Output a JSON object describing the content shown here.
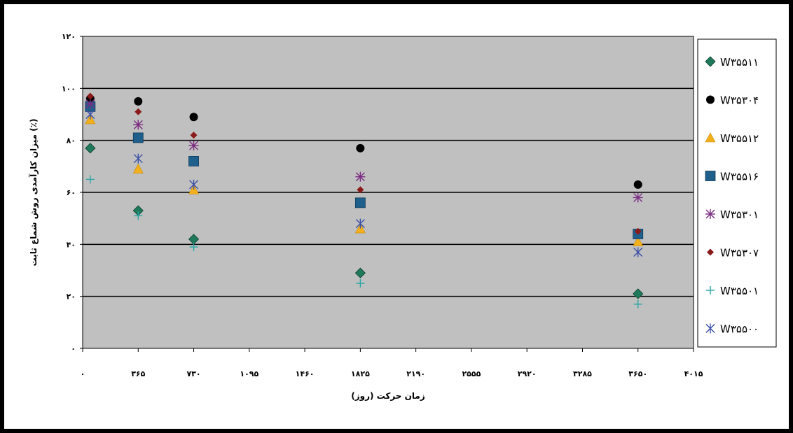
{
  "chart_data": {
    "type": "scatter",
    "title": "",
    "xlabel": "زمان حرکت (روز)",
    "ylabel": "میزان کارآمدی روش شماع ثابت (٪)",
    "xlim": [
      0,
      4015
    ],
    "ylim": [
      0,
      120
    ],
    "x_ticks": [
      0,
      365,
      730,
      1095,
      1460,
      1825,
      2190,
      2555,
      2920,
      3285,
      3650,
      4015
    ],
    "x_tick_labels": [
      "۰",
      "۳۶۵",
      "۷۳۰",
      "۱۰۹۵",
      "۱۴۶۰",
      "۱۸۲۵",
      "۲۱۹۰",
      "۲۵۵۵",
      "۲۹۲۰",
      "۳۲۸۵",
      "۳۶۵۰",
      "۴۰۱۵"
    ],
    "y_ticks": [
      0,
      20,
      40,
      60,
      80,
      100,
      120
    ],
    "y_tick_labels": [
      "۰",
      "۲۰",
      "۴۰",
      "۶۰",
      "۸۰",
      "۱۰۰",
      "۱۲۰"
    ],
    "gridlines": "horizontal",
    "background": "#c0c0c0",
    "legend_position": "right",
    "series": [
      {
        "name": "W۳۵۵۱۱",
        "marker": "diamond",
        "color": "#1f7a5c",
        "points": [
          [
            50,
            77
          ],
          [
            365,
            53
          ],
          [
            730,
            42
          ],
          [
            1825,
            29
          ],
          [
            3650,
            21
          ]
        ]
      },
      {
        "name": "W۳۵۳۰۴",
        "marker": "circle",
        "color": "#000000",
        "points": [
          [
            50,
            96
          ],
          [
            365,
            95
          ],
          [
            730,
            89
          ],
          [
            1825,
            77
          ],
          [
            3650,
            63
          ]
        ]
      },
      {
        "name": "W۳۵۵۱۲",
        "marker": "triangle",
        "color": "#f2b01e",
        "points": [
          [
            50,
            88
          ],
          [
            365,
            69
          ],
          [
            730,
            61
          ],
          [
            1825,
            46
          ],
          [
            3650,
            41
          ]
        ]
      },
      {
        "name": "W۳۵۵۱۶",
        "marker": "square",
        "color": "#1f5f8c",
        "points": [
          [
            50,
            93
          ],
          [
            365,
            81
          ],
          [
            730,
            72
          ],
          [
            1825,
            56
          ],
          [
            3650,
            44
          ]
        ]
      },
      {
        "name": "W۳۵۳۰۱",
        "marker": "asterisk",
        "color": "#7b2c82",
        "points": [
          [
            50,
            94
          ],
          [
            365,
            86
          ],
          [
            730,
            78
          ],
          [
            1825,
            66
          ],
          [
            3650,
            58
          ]
        ]
      },
      {
        "name": "W۳۵۳۰۷",
        "marker": "small-diamond",
        "color": "#8b1a1a",
        "points": [
          [
            50,
            97
          ],
          [
            365,
            91
          ],
          [
            730,
            82
          ],
          [
            1825,
            61
          ],
          [
            3650,
            45
          ]
        ]
      },
      {
        "name": "W۳۵۵۰۱",
        "marker": "plus",
        "color": "#2aa6a6",
        "points": [
          [
            50,
            65
          ],
          [
            365,
            51
          ],
          [
            730,
            39
          ],
          [
            1825,
            25
          ],
          [
            3650,
            17
          ]
        ]
      },
      {
        "name": "W۳۵۵۰۰",
        "marker": "star",
        "color": "#3a4fa8",
        "points": [
          [
            50,
            90
          ],
          [
            365,
            73
          ],
          [
            730,
            63
          ],
          [
            1825,
            48
          ],
          [
            3650,
            37
          ]
        ]
      }
    ]
  }
}
